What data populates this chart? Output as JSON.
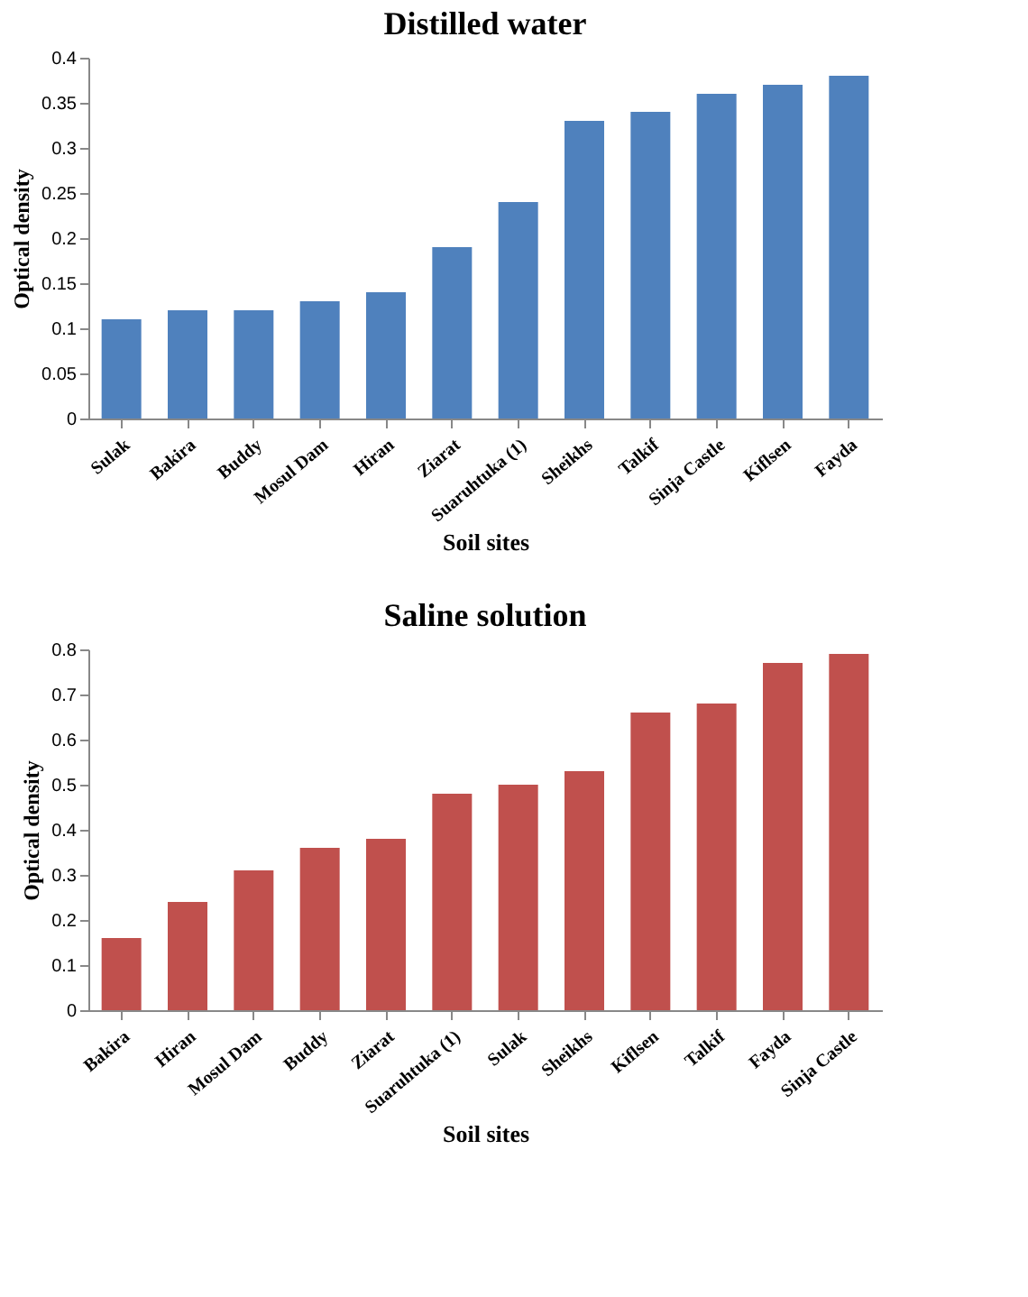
{
  "chart_data": [
    {
      "type": "bar",
      "title": "Distilled water",
      "xlabel": "Soil sites",
      "ylabel": "Optical density",
      "categories": [
        "Sulak",
        "Bakira",
        "Buddy",
        "Mosul Dam",
        "Hiran",
        "Ziarat",
        "Suaruhtuka (1)",
        "Sheikhs",
        "Talkif",
        "Sinja Castle",
        "Kiflsen",
        "Fayda"
      ],
      "values": [
        0.11,
        0.12,
        0.12,
        0.13,
        0.14,
        0.19,
        0.24,
        0.33,
        0.34,
        0.36,
        0.37,
        0.38
      ],
      "color": "#4f81bd",
      "ylim": [
        0,
        0.4
      ],
      "yticks": [
        0,
        0.05,
        0.1,
        0.15,
        0.2,
        0.25,
        0.3,
        0.35,
        0.4
      ],
      "grid": false
    },
    {
      "type": "bar",
      "title": "Saline solution",
      "xlabel": "Soil sites",
      "ylabel": "Optical density",
      "categories": [
        "Bakira",
        "Hiran",
        "Mosul Dam",
        "Buddy",
        "Ziarat",
        "Suaruhtuka (1)",
        "Sulak",
        "Sheikhs",
        "Kiflsen",
        "Talkif",
        "Fayda",
        "Sinja Castle"
      ],
      "values": [
        0.16,
        0.24,
        0.31,
        0.36,
        0.38,
        0.48,
        0.5,
        0.53,
        0.66,
        0.68,
        0.77,
        0.79
      ],
      "color": "#c0504d",
      "ylim": [
        0,
        0.8
      ],
      "yticks": [
        0,
        0.1,
        0.2,
        0.3,
        0.4,
        0.5,
        0.6,
        0.7,
        0.8
      ],
      "grid": false
    }
  ]
}
